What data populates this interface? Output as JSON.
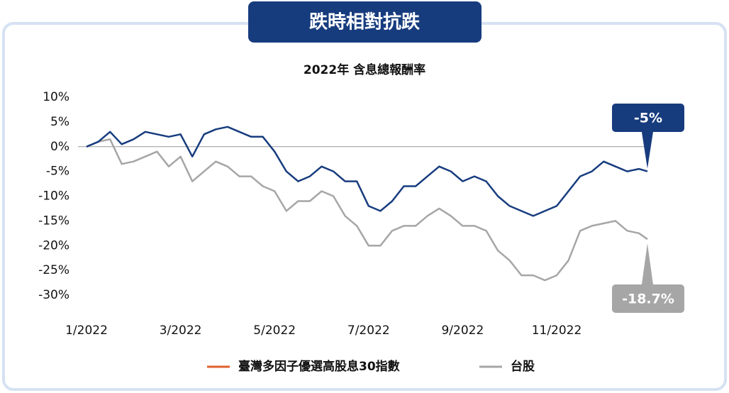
{
  "chart_data": {
    "type": "line",
    "badge": "跌時相對抗跌",
    "title": "2022年 含息總報酬率",
    "x": [
      1,
      1.25,
      1.5,
      1.75,
      2,
      2.25,
      2.5,
      2.75,
      3,
      3.25,
      3.5,
      3.75,
      4,
      4.25,
      4.5,
      4.75,
      5,
      5.25,
      5.5,
      5.75,
      6,
      6.25,
      6.5,
      6.75,
      7,
      7.25,
      7.5,
      7.75,
      8,
      8.25,
      8.5,
      8.75,
      9,
      9.25,
      9.5,
      9.75,
      10,
      10.25,
      10.5,
      10.75,
      11,
      11.25,
      11.5,
      11.75,
      12,
      12.25,
      12.5,
      12.75,
      12.93
    ],
    "xlim": [
      1,
      13
    ],
    "xticks": [
      {
        "value": 1,
        "label": "1/2022"
      },
      {
        "value": 3,
        "label": "3/2022"
      },
      {
        "value": 5,
        "label": "5/2022"
      },
      {
        "value": 7,
        "label": "7/2022"
      },
      {
        "value": 9,
        "label": "9/2022"
      },
      {
        "value": 11,
        "label": "11/2022"
      }
    ],
    "ylim": [
      -30,
      10
    ],
    "yticks": [
      {
        "value": 10,
        "label": "10%"
      },
      {
        "value": 5,
        "label": "5%"
      },
      {
        "value": 0,
        "label": "0%"
      },
      {
        "value": -5,
        "label": "-5%"
      },
      {
        "value": -10,
        "label": "-10%"
      },
      {
        "value": -15,
        "label": "-15%"
      },
      {
        "value": -20,
        "label": "-20%"
      },
      {
        "value": -25,
        "label": "-25%"
      },
      {
        "value": -30,
        "label": "-30%"
      }
    ],
    "zero_line": true,
    "series": [
      {
        "name": "臺灣多因子優選高股息30指數",
        "color": "#173c7e",
        "legend_color": "#e0602f",
        "end_label": "-5%",
        "values": [
          0,
          1,
          3,
          0.5,
          1.5,
          3,
          2.5,
          2,
          2.5,
          -2,
          2.5,
          3.5,
          4,
          3,
          2,
          2,
          -1,
          -5,
          -7,
          -6,
          -4,
          -5,
          -7,
          -7,
          -12,
          -13,
          -11,
          -8,
          -8,
          -6,
          -4,
          -5,
          -7,
          -6,
          -7,
          -10,
          -12,
          -13,
          -14,
          -13,
          -12,
          -9,
          -6,
          -5,
          -3,
          -4,
          -5,
          -4.5,
          -5
        ]
      },
      {
        "name": "台股",
        "color": "#a6a6a6",
        "legend_color": "#a6a6a6",
        "end_label": "-18.7%",
        "values": [
          0,
          1,
          1.5,
          -3.5,
          -3,
          -2,
          -1,
          -4,
          -2,
          -7,
          -5,
          -3,
          -4,
          -6,
          -6,
          -8,
          -9,
          -13,
          -11,
          -11,
          -9,
          -10,
          -14,
          -16,
          -20,
          -20,
          -17,
          -16,
          -16,
          -14,
          -12.5,
          -14,
          -16,
          -16,
          -17,
          -21,
          -23,
          -26,
          -26,
          -27,
          -26,
          -23,
          -17,
          -16,
          -15.5,
          -15,
          -17,
          -17.5,
          -18.7
        ]
      }
    ]
  }
}
